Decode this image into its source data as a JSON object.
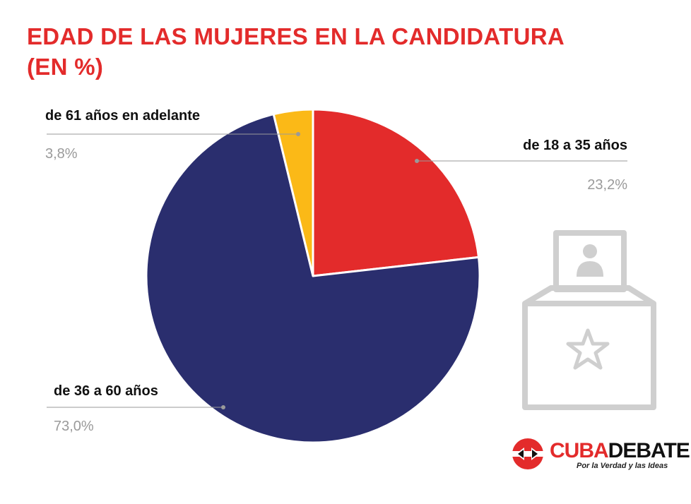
{
  "title_line1": "EDAD DE LAS MUJERES EN LA CANDIDATURA",
  "title_line2": "(EN %)",
  "chart_data": {
    "type": "pie",
    "title": "EDAD DE LAS MUJERES EN LA CANDIDATURA (EN %)",
    "slices": [
      {
        "label": "de 18 a 35 años",
        "value": 23.2,
        "display": "23,2%",
        "color": "#e32b2b"
      },
      {
        "label": "de 36 a 60 años",
        "value": 73.0,
        "display": "73,0%",
        "color": "#2a2e6e"
      },
      {
        "label": "de 61 años en adelante",
        "value": 3.8,
        "display": "3,8%",
        "color": "#fbb917"
      }
    ]
  },
  "logo": {
    "name_part1": "CUBA",
    "name_part2": "DEBATE",
    "tagline": "Por la Verdad y las Ideas",
    "colors": {
      "red": "#e32b2b",
      "dark": "#111111"
    }
  },
  "decoration": {
    "icon": "ballot-box-icon",
    "color": "#cfcfcf"
  }
}
